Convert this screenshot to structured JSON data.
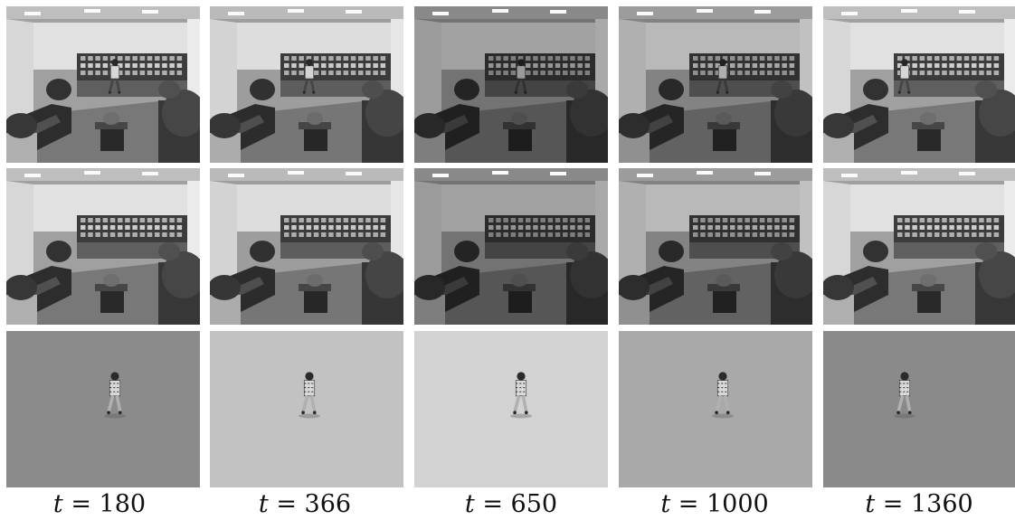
{
  "figure": {
    "captions": [
      {
        "var": "t",
        "rest": " = 180",
        "value": 180
      },
      {
        "var": "t",
        "rest": " = 366",
        "value": 366
      },
      {
        "var": "t",
        "rest": " = 650",
        "value": 650
      },
      {
        "var": "t",
        "rest": " = 1000",
        "value": 1000
      },
      {
        "var": "t",
        "rest": " = 1360",
        "value": 1360
      }
    ],
    "rows": [
      {
        "role": "input frame",
        "content": "office scene with walking person"
      },
      {
        "role": "background",
        "content": "office scene without person"
      },
      {
        "role": "foreground",
        "content": "extracted person on flat gray"
      }
    ],
    "column_tones": {
      "scene_brightness": [
        1.0,
        0.98,
        0.72,
        0.82,
        1.0
      ],
      "fg_background_colors": [
        "#8b8b8b",
        "#c2c2c2",
        "#d2d2d2",
        "#a9a9a9",
        "#8a8a8a"
      ]
    }
  }
}
